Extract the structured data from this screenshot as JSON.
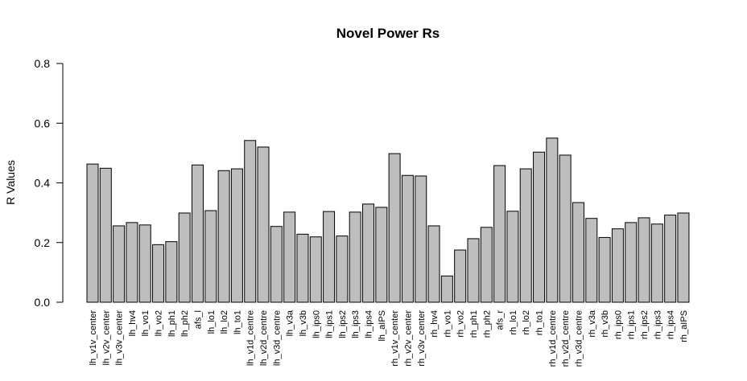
{
  "chart_data": {
    "type": "bar",
    "title": "Novel Power Rs",
    "xlabel": "",
    "ylabel": "R Values",
    "ylim": [
      0,
      0.8
    ],
    "yticks": [
      "0.0",
      "0.2",
      "0.4",
      "0.6",
      "0.8"
    ],
    "bar_color": "#bebebe",
    "categories": [
      "lh_v1v_center",
      "lh_v2v_center",
      "lh_v3v_center",
      "lh_hv4",
      "lh_vo1",
      "lh_vo2",
      "lh_ph1",
      "lh_ph2",
      "afs_l",
      "lh_lo1",
      "lh_lo2",
      "lh_to1",
      "lh_v1d_centre",
      "lh_v2d_centre",
      "lh_v3d_centre",
      "lh_v3a",
      "lh_v3b",
      "lh_ips0",
      "lh_ips1",
      "lh_ips2",
      "lh_ips3",
      "lh_ips4",
      "lh_aIPS",
      "rh_v1v_center",
      "rh_v2v_center",
      "rh_v3v_center",
      "rh_hv4",
      "rh_vo1",
      "rh_vo2",
      "rh_ph1",
      "rh_ph2",
      "afs_r",
      "rh_lo1",
      "rh_lo2",
      "rh_to1",
      "rh_v1d_centre",
      "rh_v2d_centre",
      "rh_v3d_centre",
      "rh_v3a",
      "rh_v3b",
      "rh_ips0",
      "rh_ips1",
      "rh_ips2",
      "rh_ips3",
      "rh_ips4",
      "rh_aIPS"
    ],
    "values": [
      0.463,
      0.449,
      0.256,
      0.267,
      0.259,
      0.193,
      0.203,
      0.299,
      0.46,
      0.307,
      0.441,
      0.447,
      0.542,
      0.52,
      0.254,
      0.302,
      0.228,
      0.219,
      0.304,
      0.222,
      0.302,
      0.329,
      0.318,
      0.498,
      0.425,
      0.423,
      0.256,
      0.088,
      0.175,
      0.213,
      0.251,
      0.458,
      0.305,
      0.447,
      0.503,
      0.55,
      0.493,
      0.334,
      0.281,
      0.217,
      0.246,
      0.267,
      0.283,
      0.262,
      0.292,
      0.299
    ]
  }
}
